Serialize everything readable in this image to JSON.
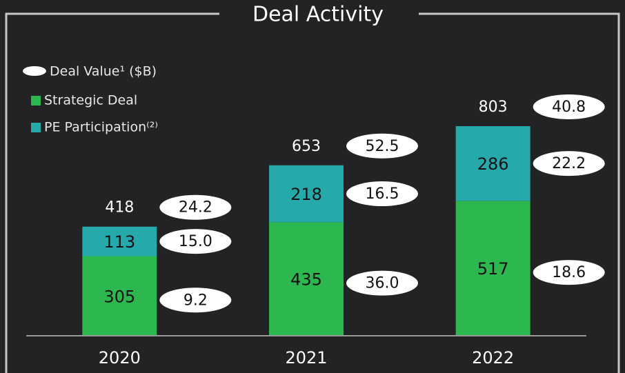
{
  "chart_data": {
    "type": "bar",
    "title": "Deal Activity",
    "categories": [
      "2020",
      "2021",
      "2022"
    ],
    "series": [
      {
        "name": "Strategic Deal",
        "color": "#2db84f",
        "values": [
          305,
          435,
          517
        ],
        "deal_values": [
          9.2,
          36.0,
          18.6
        ],
        "deal_value_labels": [
          "9.2",
          "36.0",
          "18.6"
        ]
      },
      {
        "name": "PE Participation⁽²⁾",
        "color": "#26a9ab",
        "values": [
          113,
          218,
          286
        ],
        "deal_values": [
          15.0,
          16.5,
          22.2
        ],
        "deal_value_labels": [
          "15.0",
          "16.5",
          "22.2"
        ]
      }
    ],
    "totals": [
      418,
      653,
      803
    ],
    "total_deal_values": [
      24.2,
      52.5,
      40.8
    ],
    "deal_value_legend": "Deal Value¹ ($B)",
    "ylim": [
      0,
      1000
    ],
    "stacked": true
  }
}
